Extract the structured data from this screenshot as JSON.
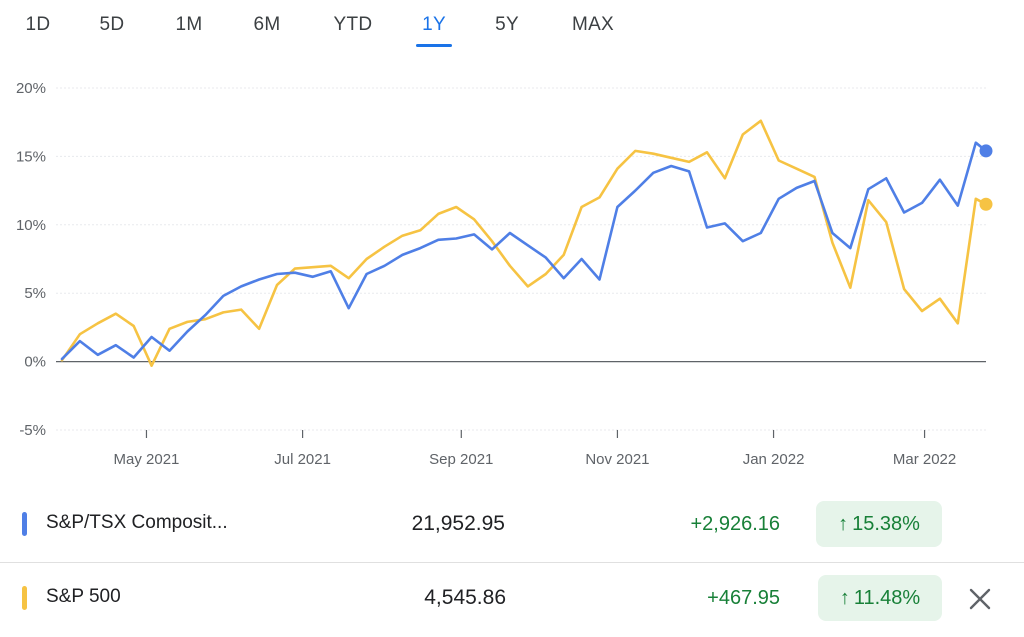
{
  "tabs": [
    {
      "label": "1D",
      "active": false
    },
    {
      "label": "5D",
      "active": false
    },
    {
      "label": "1M",
      "active": false
    },
    {
      "label": "6M",
      "active": false
    },
    {
      "label": "YTD",
      "active": false
    },
    {
      "label": "1Y",
      "active": true
    },
    {
      "label": "5Y",
      "active": false
    },
    {
      "label": "MAX",
      "active": false
    }
  ],
  "colors": {
    "accent": "#1a73e8",
    "tsx": "#4f7fe6",
    "sp500": "#f6c343",
    "positive": "#188038",
    "positive_bg": "#e6f4ea"
  },
  "chart_data": {
    "type": "line",
    "yticks": [
      "20%",
      "15%",
      "10%",
      "5%",
      "0%",
      "-5%"
    ],
    "ylim": [
      -5,
      20
    ],
    "xticks": [
      "May 2021",
      "Jul 2021",
      "Sep 2021",
      "Nov 2021",
      "Jan 2022",
      "Mar 2022"
    ],
    "x_range": [
      "2021-03-29",
      "2022-03-25"
    ],
    "x_tick_dates": [
      "2021-05-01",
      "2021-07-01",
      "2021-09-01",
      "2021-11-01",
      "2022-01-01",
      "2022-03-01"
    ],
    "grid": true,
    "series": [
      {
        "name": "S&P/TSX Composit...",
        "color": "#4f7fe6",
        "x": [
          "2021-03-29",
          "2021-04-05",
          "2021-04-12",
          "2021-04-19",
          "2021-04-26",
          "2021-05-03",
          "2021-05-10",
          "2021-05-17",
          "2021-05-24",
          "2021-05-31",
          "2021-06-07",
          "2021-06-14",
          "2021-06-21",
          "2021-06-28",
          "2021-07-05",
          "2021-07-12",
          "2021-07-19",
          "2021-07-26",
          "2021-08-02",
          "2021-08-09",
          "2021-08-16",
          "2021-08-23",
          "2021-08-30",
          "2021-09-06",
          "2021-09-13",
          "2021-09-20",
          "2021-09-27",
          "2021-10-04",
          "2021-10-11",
          "2021-10-18",
          "2021-10-25",
          "2021-11-01",
          "2021-11-08",
          "2021-11-15",
          "2021-11-22",
          "2021-11-29",
          "2021-12-06",
          "2021-12-13",
          "2021-12-20",
          "2021-12-27",
          "2022-01-03",
          "2022-01-10",
          "2022-01-17",
          "2022-01-24",
          "2022-01-31",
          "2022-02-07",
          "2022-02-14",
          "2022-02-21",
          "2022-02-28",
          "2022-03-07",
          "2022-03-14",
          "2022-03-21",
          "2022-03-25"
        ],
        "y": [
          0.2,
          1.5,
          0.5,
          1.2,
          0.3,
          1.8,
          0.8,
          2.2,
          3.4,
          4.8,
          5.5,
          6.0,
          6.4,
          6.5,
          6.2,
          6.6,
          3.9,
          6.4,
          7.0,
          7.8,
          8.3,
          8.9,
          9.0,
          9.3,
          8.2,
          9.4,
          8.5,
          7.6,
          6.1,
          7.5,
          6.0,
          11.3,
          12.5,
          13.8,
          14.3,
          13.9,
          9.8,
          10.1,
          8.8,
          9.4,
          11.9,
          12.7,
          13.2,
          9.4,
          8.3,
          12.6,
          13.4,
          10.9,
          11.6,
          13.3,
          11.4,
          16.0,
          15.4
        ]
      },
      {
        "name": "S&P 500",
        "color": "#f6c343",
        "x": [
          "2021-03-29",
          "2021-04-05",
          "2021-04-12",
          "2021-04-19",
          "2021-04-26",
          "2021-05-03",
          "2021-05-10",
          "2021-05-17",
          "2021-05-24",
          "2021-05-31",
          "2021-06-07",
          "2021-06-14",
          "2021-06-21",
          "2021-06-28",
          "2021-07-05",
          "2021-07-12",
          "2021-07-19",
          "2021-07-26",
          "2021-08-02",
          "2021-08-09",
          "2021-08-16",
          "2021-08-23",
          "2021-08-30",
          "2021-09-06",
          "2021-09-13",
          "2021-09-20",
          "2021-09-27",
          "2021-10-04",
          "2021-10-11",
          "2021-10-18",
          "2021-10-25",
          "2021-11-01",
          "2021-11-08",
          "2021-11-15",
          "2021-11-22",
          "2021-11-29",
          "2021-12-06",
          "2021-12-13",
          "2021-12-20",
          "2021-12-27",
          "2022-01-03",
          "2022-01-10",
          "2022-01-17",
          "2022-01-24",
          "2022-01-31",
          "2022-02-07",
          "2022-02-14",
          "2022-02-21",
          "2022-02-28",
          "2022-03-07",
          "2022-03-14",
          "2022-03-21",
          "2022-03-25"
        ],
        "y": [
          0.1,
          2.0,
          2.8,
          3.5,
          2.6,
          -0.3,
          2.4,
          2.9,
          3.1,
          3.6,
          3.8,
          2.4,
          5.6,
          6.8,
          6.9,
          7.0,
          6.1,
          7.5,
          8.4,
          9.2,
          9.6,
          10.8,
          11.3,
          10.4,
          8.8,
          7.0,
          5.5,
          6.4,
          7.8,
          11.3,
          12.0,
          14.1,
          15.4,
          15.2,
          14.9,
          14.6,
          15.3,
          13.4,
          16.6,
          17.6,
          14.7,
          14.1,
          13.5,
          8.7,
          5.4,
          11.8,
          10.2,
          5.3,
          3.7,
          4.6,
          2.8,
          11.9,
          11.5
        ]
      }
    ]
  },
  "legend": [
    {
      "name": "S&P/TSX Composit...",
      "price": "21,952.95",
      "change": "+2,926.16",
      "percent": "15.38%",
      "arrow": "↑"
    },
    {
      "name": "S&P 500",
      "price": "4,545.86",
      "change": "+467.95",
      "percent": "11.48%",
      "arrow": "↑"
    }
  ]
}
